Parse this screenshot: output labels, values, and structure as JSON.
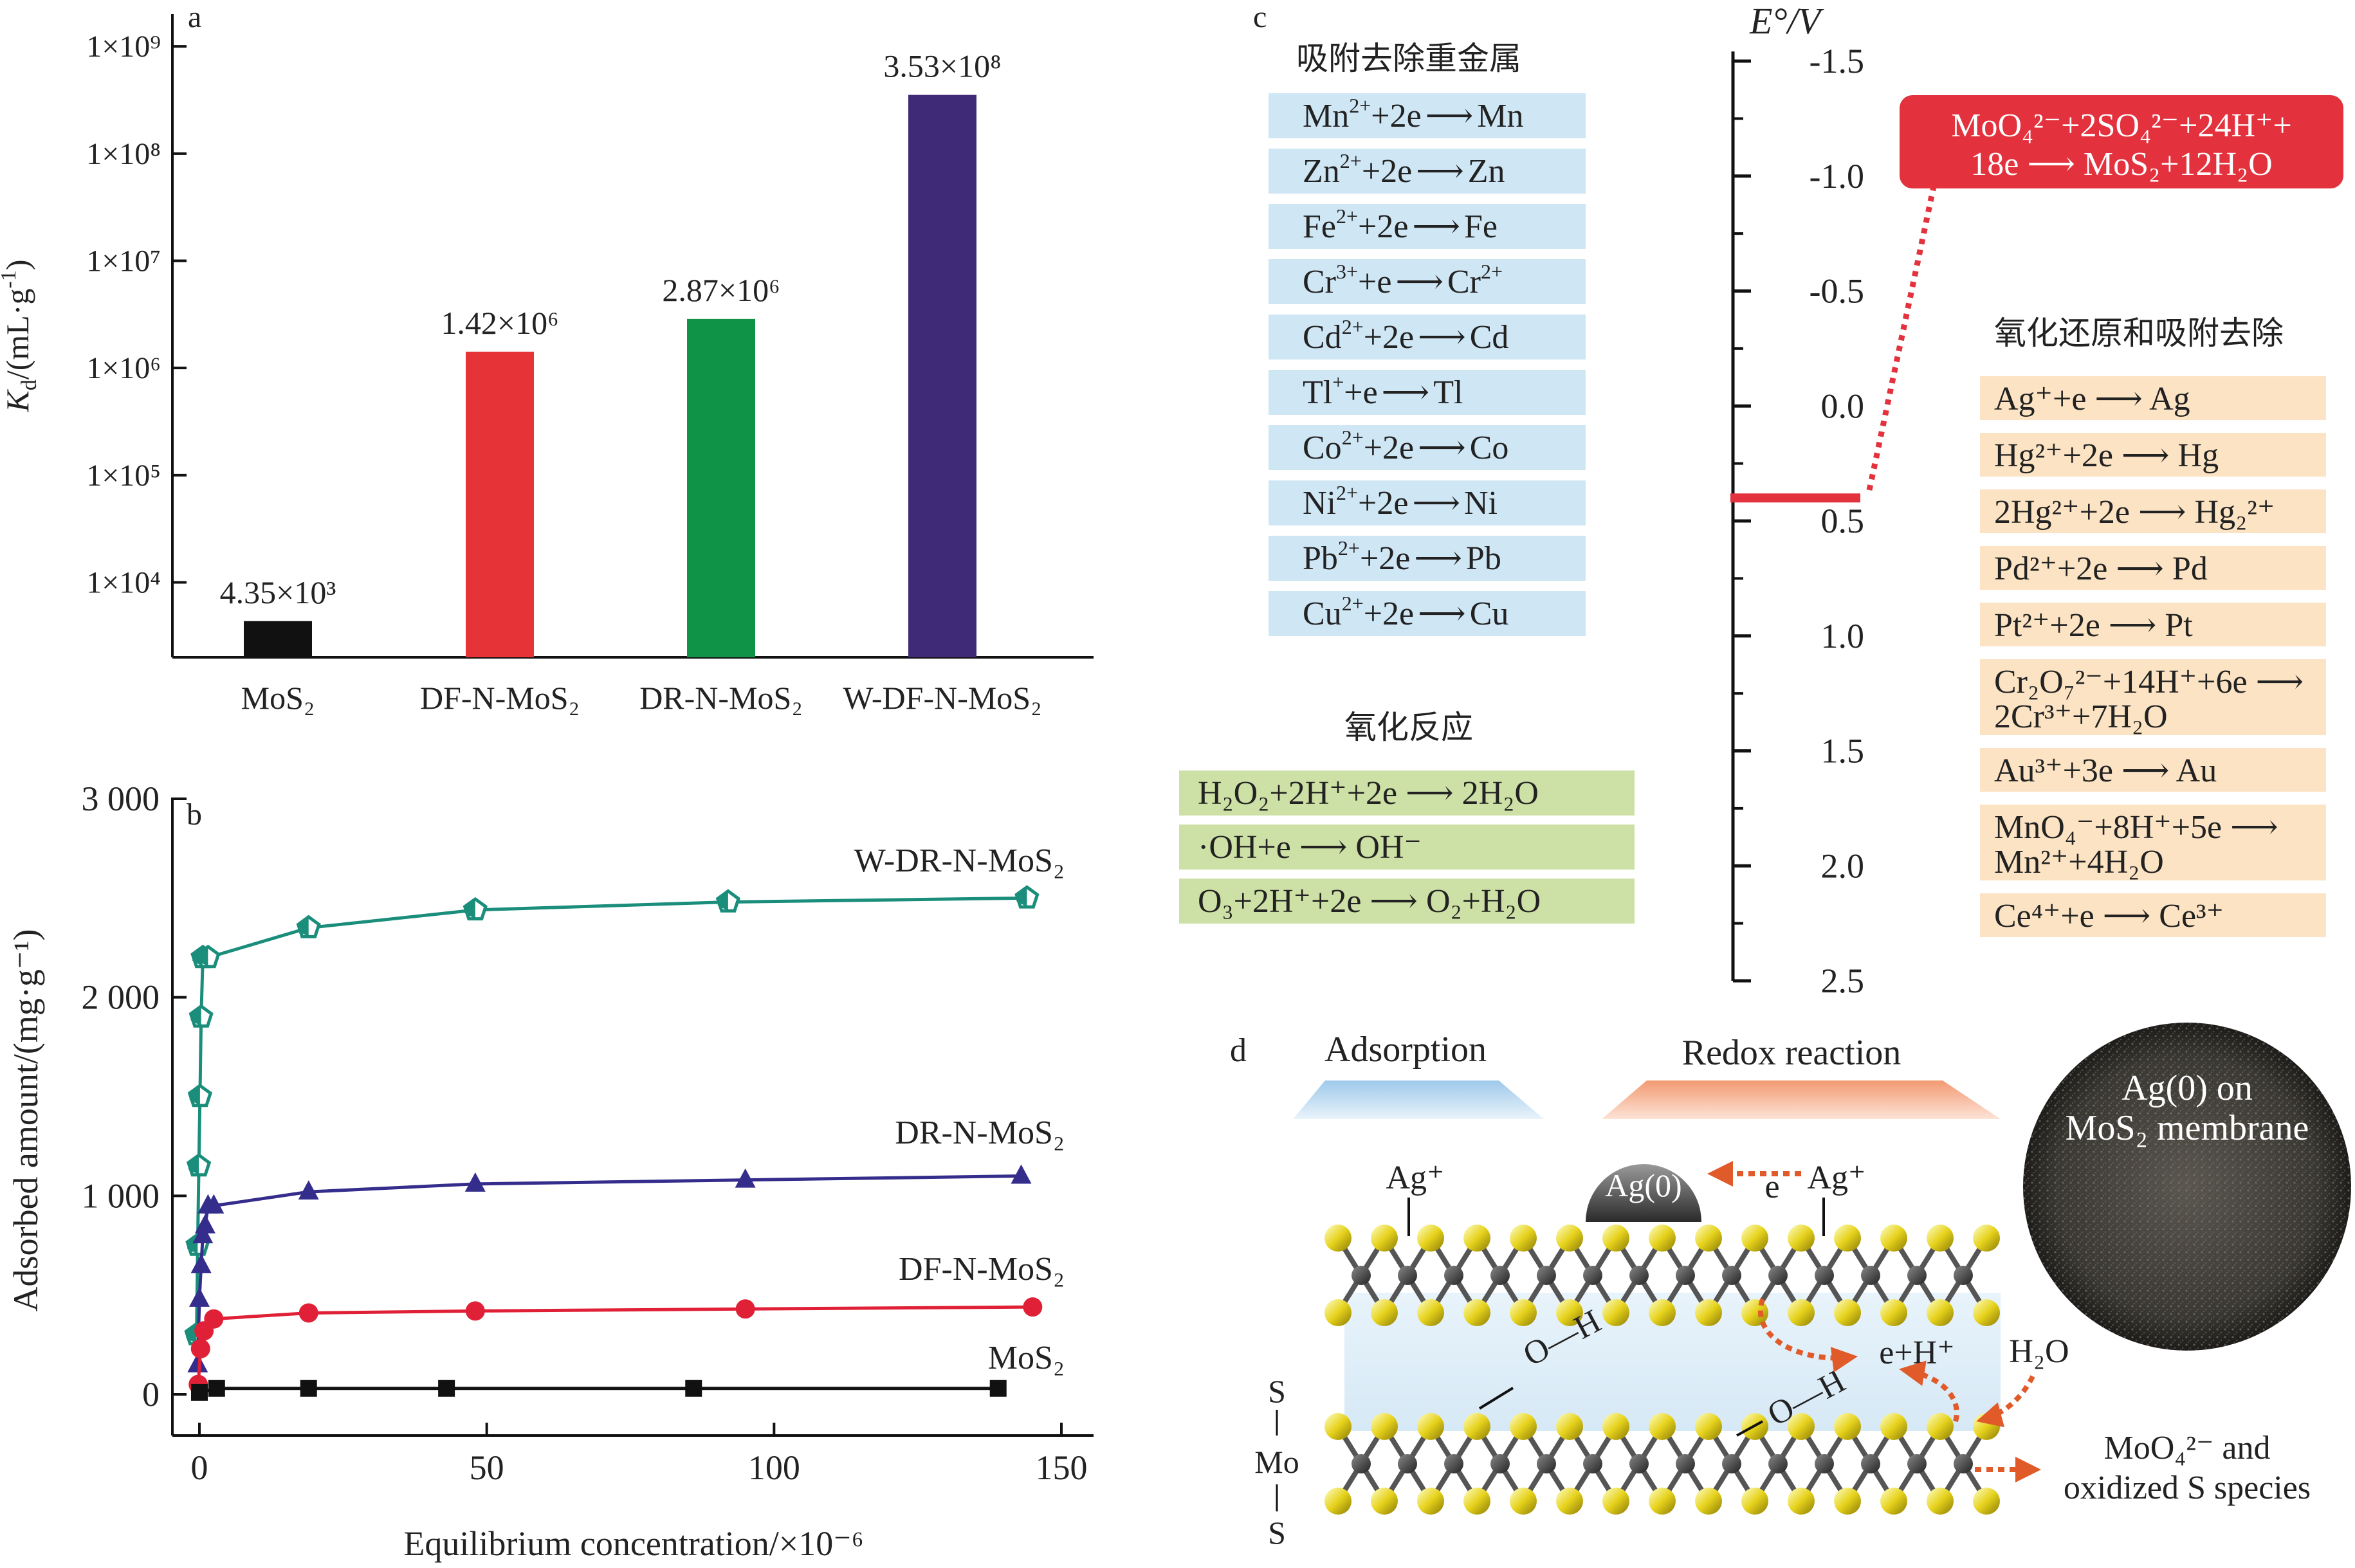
{
  "panel_labels": {
    "a": "a",
    "b": "b",
    "c": "c",
    "d": "d"
  },
  "chart_data": [
    {
      "type": "bar",
      "panel": "a",
      "log_scale": true,
      "categories": [
        "MoS₂",
        "DF-N-MoS₂",
        "DR-N-MoS₂",
        "W-DF-N-MoS₂"
      ],
      "values": [
        4350,
        1420000,
        2870000,
        353000000
      ],
      "value_labels": [
        "4.35×10³",
        "1.42×10⁶",
        "2.87×10⁶",
        "3.53×10⁸"
      ],
      "colors": [
        "#111111",
        "#e63338",
        "#0f9347",
        "#3f2a78"
      ],
      "ylabel": "K_d/(mL·g⁻¹)",
      "ylabel_parts": {
        "base": "K",
        "sub": "d",
        "rest": "/(mL·g",
        "sup": "-1",
        "close": ")"
      },
      "yticks": [
        {
          "value": 10000,
          "label": "1×10⁴"
        },
        {
          "value": 100000,
          "label": "1×10⁵"
        },
        {
          "value": 1000000,
          "label": "1×10⁶"
        },
        {
          "value": 10000000,
          "label": "1×10⁷"
        },
        {
          "value": 100000000,
          "label": "1×10⁸"
        },
        {
          "value": 1000000000,
          "label": "1×10⁹"
        }
      ],
      "ylim": [
        2000,
        2000000000
      ]
    },
    {
      "type": "line",
      "panel": "b",
      "xlabel": "Equilibrium concentration/×10⁻⁶",
      "ylabel": "Adsorbed amount/(mg·g⁻¹)",
      "xlim": [
        -5,
        150
      ],
      "ylim": [
        -50,
        3000
      ],
      "xticks": [
        {
          "value": 0,
          "label": "0"
        },
        {
          "value": 50,
          "label": "50"
        },
        {
          "value": 100,
          "label": "100"
        },
        {
          "value": 150,
          "label": "150"
        }
      ],
      "yticks": [
        {
          "value": 0,
          "label": "0"
        },
        {
          "value": 1000,
          "label": "1 000"
        },
        {
          "value": 2000,
          "label": "2 000"
        },
        {
          "value": 3000,
          "label": "3 000"
        }
      ],
      "series": [
        {
          "name": "W-DR-N-MoS₂",
          "color": "#1a8d7b",
          "marker": "pentagon",
          "x": [
            -0.5,
            -0.3,
            -0.1,
            0.1,
            0.3,
            0.6,
            1.5,
            19,
            48,
            92,
            144
          ],
          "y": [
            300,
            750,
            1150,
            1500,
            1900,
            2200,
            2200,
            2350,
            2440,
            2480,
            2500
          ]
        },
        {
          "name": "DR-N-MoS₂",
          "color": "#352d8c",
          "marker": "triangle",
          "x": [
            -0.3,
            0,
            0.3,
            0.6,
            1.0,
            1.5,
            2.5,
            19,
            48,
            95,
            143
          ],
          "y": [
            150,
            480,
            650,
            800,
            850,
            950,
            950,
            1020,
            1060,
            1080,
            1100
          ]
        },
        {
          "name": "DF-N-MoS₂",
          "color": "#e02036",
          "marker": "circle",
          "x": [
            -0.2,
            0.2,
            0.8,
            2.5,
            19,
            48,
            95,
            145
          ],
          "y": [
            50,
            230,
            320,
            380,
            410,
            420,
            430,
            440
          ]
        },
        {
          "name": "MoS₂",
          "color": "#111111",
          "marker": "square",
          "x": [
            0,
            3,
            19,
            43,
            86,
            139
          ],
          "y": [
            10,
            30,
            30,
            30,
            30,
            30
          ]
        }
      ]
    }
  ],
  "panel_c": {
    "adsorption_title": "吸附去除重金属",
    "adsorption_reactions": [
      [
        "Mn",
        "2+",
        "+2e",
        "Mn",
        ""
      ],
      [
        "Zn",
        "2+",
        "+2e",
        "Zn",
        ""
      ],
      [
        "Fe",
        "2+",
        "+2e",
        "Fe",
        ""
      ],
      [
        "Cr",
        "3+",
        "+e",
        "Cr",
        "2+"
      ],
      [
        "Cd",
        "2+",
        "+2e",
        "Cd",
        ""
      ],
      [
        "Tl",
        "+",
        "+e",
        "Tl",
        ""
      ],
      [
        "Co",
        "2+",
        "+2e",
        "Co",
        ""
      ],
      [
        "Ni",
        "2+",
        "+2e",
        "Ni",
        ""
      ],
      [
        "Pb",
        "2+",
        "+2e",
        "Pb",
        ""
      ],
      [
        "Cu",
        "2+",
        "+2e",
        "Cu",
        ""
      ]
    ],
    "oxidation_title": "氧化反应",
    "oxidation_reactions": [
      "H₂O₂+2H⁺+2e ⟶ 2H₂O",
      "·OH+e ⟶ OH⁻",
      "O₃+2H⁺+2e ⟶ O₂+H₂O"
    ],
    "axis_title": "E°/V",
    "axis_ticks": [
      {
        "value": -1.5,
        "label": "-1.5"
      },
      {
        "value": -1.0,
        "label": "-1.0"
      },
      {
        "value": -0.5,
        "label": "-0.5"
      },
      {
        "value": 0.0,
        "label": "0.0"
      },
      {
        "value": 0.5,
        "label": "0.5"
      },
      {
        "value": 1.0,
        "label": "1.0"
      },
      {
        "value": 1.5,
        "label": "1.5"
      },
      {
        "value": 2.0,
        "label": "2.0"
      },
      {
        "value": 2.5,
        "label": "2.5"
      }
    ],
    "marker_value": 0.4,
    "mos2_reaction_line1": "MoO₄²⁻+2SO₄²⁻+24H⁺+",
    "mos2_reaction_line2": "18e ⟶ MoS₂+12H₂O",
    "redox_title": "氧化还原和吸附去除",
    "redox_reactions": [
      [
        "Ag⁺+e ⟶ Ag"
      ],
      [
        "Hg²⁺+2e ⟶ Hg"
      ],
      [
        "2Hg²⁺+2e ⟶ Hg₂²⁺"
      ],
      [
        "Pd²⁺+2e ⟶ Pd"
      ],
      [
        "Pt²⁺+2e ⟶ Pt"
      ],
      [
        "Cr₂O₇²⁻+14H⁺+6e ⟶",
        "2Cr³⁺+7H₂O"
      ],
      [
        "Au³⁺+3e ⟶ Au"
      ],
      [
        "MnO₄⁻+8H⁺+5e ⟶",
        "Mn²⁺+4H₂O"
      ],
      [
        "Ce⁴⁺+e ⟶ Ce³⁺"
      ]
    ],
    "colors": {
      "blue_box": "#cfe6f5",
      "green_box": "#cde0a5",
      "orange_box": "#fbe3c3",
      "red": "#e3313d"
    }
  },
  "panel_d": {
    "adsorption_label": "Adsorption",
    "redox_label": "Redox reaction",
    "ag_ion_left": "Ag⁺",
    "ag_ion_right": "Ag⁺",
    "ag0": "Ag(0)",
    "electron": "e",
    "oh_left": "O—H",
    "oh_right": "O—H",
    "e_h": "e+H⁺",
    "water": "H₂O",
    "s_top": "S",
    "mo": "Mo",
    "s_bottom": "S",
    "product_line1": "MoO₄²⁻ and",
    "product_line2": "oxidized S species",
    "photo_line1": "Ag(0) on",
    "photo_line2": "MoS₂ membrane"
  }
}
